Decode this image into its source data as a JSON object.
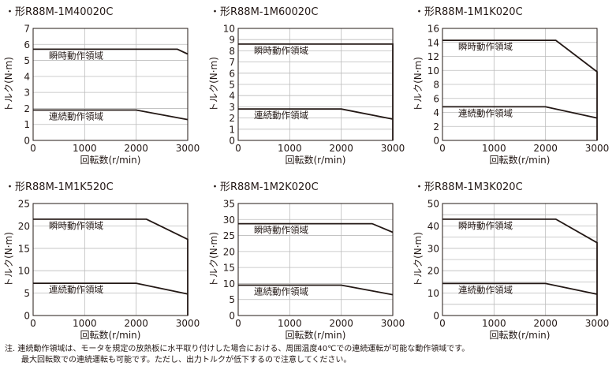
{
  "chart_data": [
    {
      "type": "line",
      "title": "・形R88M-1M40020C",
      "xlabel": "回転数(r/min)",
      "ylabel": "トルク(N·m)",
      "xlim": [
        0,
        3000
      ],
      "ylim": [
        0,
        7
      ],
      "xticks": [
        0,
        1000,
        2000,
        3000
      ],
      "yticks": [
        0,
        1,
        2,
        3,
        4,
        5,
        6,
        7
      ],
      "series": [
        {
          "name": "瞬時動作領域",
          "points": [
            [
              0,
              5.7
            ],
            [
              2800,
              5.7
            ],
            [
              3000,
              5.4
            ]
          ]
        },
        {
          "name": "連続動作領域",
          "points": [
            [
              0,
              1.9
            ],
            [
              2000,
              1.9
            ],
            [
              3000,
              1.3
            ]
          ]
        }
      ],
      "drop_at_max_speed": false
    },
    {
      "type": "line",
      "title": "・形R88M-1M60020C",
      "xlabel": "回転数(r/min)",
      "ylabel": "トルク(N·m)",
      "xlim": [
        0,
        3000
      ],
      "ylim": [
        0,
        10
      ],
      "xticks": [
        0,
        1000,
        2000,
        3000
      ],
      "yticks": [
        0,
        1,
        2,
        3,
        4,
        5,
        6,
        7,
        8,
        9,
        10
      ],
      "series": [
        {
          "name": "瞬時動作領域",
          "points": [
            [
              0,
              8.6
            ],
            [
              3000,
              8.6
            ]
          ]
        },
        {
          "name": "連続動作領域",
          "points": [
            [
              0,
              2.8
            ],
            [
              2000,
              2.8
            ],
            [
              3000,
              1.9
            ]
          ]
        }
      ],
      "drop_at_max_speed": true
    },
    {
      "type": "line",
      "title": "・形R88M-1M1K020C",
      "xlabel": "回転数(r/min)",
      "ylabel": "トルク(N·m)",
      "xlim": [
        0,
        3000
      ],
      "ylim": [
        0,
        16
      ],
      "xticks": [
        0,
        1000,
        2000,
        3000
      ],
      "yticks": [
        0,
        2,
        4,
        6,
        8,
        10,
        12,
        14,
        16
      ],
      "series": [
        {
          "name": "瞬時動作領域",
          "points": [
            [
              0,
              14.3
            ],
            [
              2200,
              14.3
            ],
            [
              3000,
              9.8
            ]
          ]
        },
        {
          "name": "連続動作領域",
          "points": [
            [
              0,
              4.8
            ],
            [
              2000,
              4.8
            ],
            [
              3000,
              3.2
            ]
          ]
        }
      ],
      "drop_at_max_speed": true
    },
    {
      "type": "line",
      "title": "・形R88M-1M1K520C",
      "xlabel": "回転数(r/min)",
      "ylabel": "トルク(N·m)",
      "xlim": [
        0,
        3000
      ],
      "ylim": [
        0,
        25
      ],
      "xticks": [
        0,
        1000,
        2000,
        3000
      ],
      "yticks": [
        0,
        5,
        10,
        15,
        20,
        25
      ],
      "series": [
        {
          "name": "瞬時動作領域",
          "points": [
            [
              0,
              21.5
            ],
            [
              2200,
              21.5
            ],
            [
              3000,
              17.0
            ]
          ]
        },
        {
          "name": "連続動作領域",
          "points": [
            [
              0,
              7.2
            ],
            [
              2000,
              7.2
            ],
            [
              3000,
              4.8
            ]
          ]
        }
      ],
      "drop_at_max_speed": true
    },
    {
      "type": "line",
      "title": "・形R88M-1M2K020C",
      "xlabel": "回転数(r/min)",
      "ylabel": "トルク(N·m)",
      "xlim": [
        0,
        3000
      ],
      "ylim": [
        0,
        35
      ],
      "xticks": [
        0,
        1000,
        2000,
        3000
      ],
      "yticks": [
        0,
        5,
        10,
        15,
        20,
        25,
        30,
        35
      ],
      "series": [
        {
          "name": "瞬時動作領域",
          "points": [
            [
              0,
              28.7
            ],
            [
              2600,
              28.7
            ],
            [
              3000,
              26.0
            ]
          ]
        },
        {
          "name": "連続動作領域",
          "points": [
            [
              0,
              9.5
            ],
            [
              2000,
              9.5
            ],
            [
              3000,
              6.5
            ]
          ]
        }
      ],
      "drop_at_max_speed": false
    },
    {
      "type": "line",
      "title": "・形R88M-1M3K020C",
      "xlabel": "回転数(r/min)",
      "ylabel": "トルク(N·m)",
      "xlim": [
        0,
        3000
      ],
      "ylim": [
        0,
        50
      ],
      "xticks": [
        0,
        1000,
        2000,
        3000
      ],
      "yticks": [
        0,
        5,
        10,
        15,
        20,
        25,
        30,
        35,
        40,
        45,
        50
      ],
      "ytick_labels_shown": [
        0,
        10,
        20,
        30,
        40,
        50
      ],
      "series": [
        {
          "name": "瞬時動作領域",
          "points": [
            [
              0,
              43.0
            ],
            [
              2200,
              43.0
            ],
            [
              3000,
              32.5
            ]
          ]
        },
        {
          "name": "連続動作領域",
          "points": [
            [
              0,
              14.3
            ],
            [
              2000,
              14.3
            ],
            [
              3000,
              9.5
            ]
          ]
        }
      ],
      "drop_at_max_speed": true
    }
  ],
  "footnote": {
    "line1": "注. 連続動作領域は、モータを規定の放熱板に水平取り付けした場合における、周囲温度40℃での連続運転が可能な動作領域です。",
    "line2": "最大回転数での連続運転も可能です。ただし、出力トルクが低下するので注意してください。"
  },
  "colors": {
    "frame": "#231815",
    "grid": "#bcbcbc",
    "line": "#231815"
  }
}
